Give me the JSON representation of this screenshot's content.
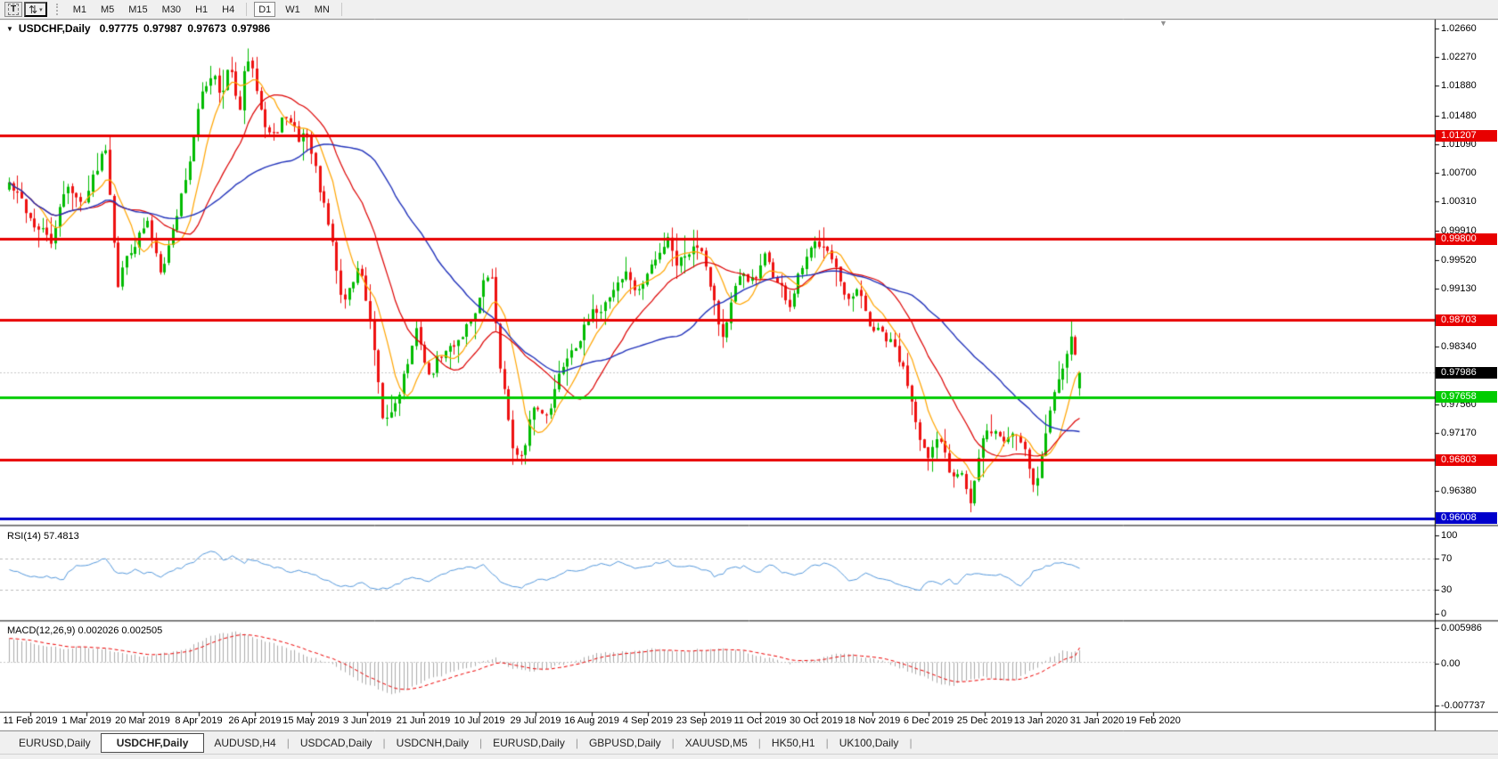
{
  "toolbar": {
    "text_tool_label": "T",
    "timeframes": [
      "M1",
      "M5",
      "M15",
      "M30",
      "H1",
      "H4",
      "D1",
      "W1",
      "MN"
    ],
    "active_timeframe": "D1"
  },
  "icons": {
    "arrows": "⇅",
    "dropdown": "▾",
    "collapse": "▼",
    "shift_marker": "▼"
  },
  "chart": {
    "title": "USDCHF,Daily",
    "ohlc": {
      "open": "0.97775",
      "high": "0.97987",
      "low": "0.97673",
      "close": "0.97986"
    }
  },
  "price_axis": {
    "ticks": [
      "1.02660",
      "1.02270",
      "1.01880",
      "1.01480",
      "1.01090",
      "1.00700",
      "1.00310",
      "0.99910",
      "0.99520",
      "0.99130",
      "0.98340",
      "0.97560",
      "0.97170",
      "0.96380"
    ]
  },
  "rsi": {
    "label": "RSI(14) 57.4813",
    "axis_ticks": [
      "100",
      "70",
      "30",
      "0"
    ]
  },
  "macd": {
    "label": "MACD(12,26,9) 0.002026 0.002505",
    "axis_ticks": [
      "0.005986",
      "0.00",
      "-0.007737"
    ]
  },
  "date_axis": {
    "labels": [
      "11 Feb 2019",
      "1 Mar 2019",
      "20 Mar 2019",
      "8 Apr 2019",
      "26 Apr 2019",
      "15 May 2019",
      "3 Jun 2019",
      "21 Jun 2019",
      "10 Jul 2019",
      "29 Jul 2019",
      "16 Aug 2019",
      "4 Sep 2019",
      "23 Sep 2019",
      "11 Oct 2019",
      "30 Oct 2019",
      "18 Nov 2019",
      "6 Dec 2019",
      "25 Dec 2019",
      "13 Jan 2020",
      "31 Jan 2020",
      "19 Feb 2020"
    ]
  },
  "tabs": {
    "items": [
      "EURUSD,Daily",
      "USDCHF,Daily",
      "AUDUSD,H4",
      "USDCAD,Daily",
      "USDCNH,Daily",
      "EURUSD,Daily",
      "GBPUSD,Daily",
      "XAUUSD,M5",
      "HK50,H1",
      "UK100,Daily"
    ],
    "active_index": 1
  },
  "chart_data": {
    "type": "candlestick",
    "symbol": "USDCHF",
    "timeframe": "Daily",
    "bars": 256,
    "last_bar": {
      "open": 0.97775,
      "high": 0.97987,
      "low": 0.97673,
      "close": 0.97986
    },
    "current_price": 0.97986,
    "colors": {
      "up": "#00BB00",
      "down": "#EE1111"
    },
    "y_axis": {
      "visible_range": [
        0.9594,
        1.0276
      ],
      "grid": false
    },
    "horizontal_lines": [
      {
        "price": 1.01207,
        "color": "#E80000"
      },
      {
        "price": 0.998,
        "color": "#E80000"
      },
      {
        "price": 0.98703,
        "color": "#E80000"
      },
      {
        "price": 0.97658,
        "color": "#00CC00"
      },
      {
        "price": 0.96803,
        "color": "#E80000"
      },
      {
        "price": 0.96008,
        "color": "#0000CC"
      }
    ],
    "moving_averages": [
      {
        "name": "fast-ma",
        "period": 8,
        "color": "#FFA500"
      },
      {
        "name": "medium-ma",
        "period": 20,
        "color": "#DD0000"
      },
      {
        "name": "slow-ma",
        "period": 44,
        "color": "#2233BB"
      }
    ],
    "price_path_anchors": [
      [
        0.0,
        1.0055
      ],
      [
        0.017,
        1.0015
      ],
      [
        0.029,
        0.999
      ],
      [
        0.041,
        0.9975
      ],
      [
        0.054,
        1.006
      ],
      [
        0.066,
        1.0025
      ],
      [
        0.079,
        1.0065
      ],
      [
        0.09,
        1.0115
      ],
      [
        0.102,
        0.993
      ],
      [
        0.116,
        0.998
      ],
      [
        0.129,
        1.0
      ],
      [
        0.141,
        0.9945
      ],
      [
        0.154,
        1.0
      ],
      [
        0.166,
        1.0075
      ],
      [
        0.181,
        1.018
      ],
      [
        0.191,
        1.0215
      ],
      [
        0.199,
        1.018
      ],
      [
        0.206,
        1.022
      ],
      [
        0.214,
        1.014
      ],
      [
        0.222,
        1.0225
      ],
      [
        0.232,
        1.018
      ],
      [
        0.241,
        1.014
      ],
      [
        0.251,
        1.0125
      ],
      [
        0.259,
        1.015
      ],
      [
        0.27,
        1.011
      ],
      [
        0.278,
        1.0125
      ],
      [
        0.29,
        1.005
      ],
      [
        0.3,
        0.998
      ],
      [
        0.311,
        0.989
      ],
      [
        0.32,
        0.992
      ],
      [
        0.328,
        0.9945
      ],
      [
        0.339,
        0.985
      ],
      [
        0.349,
        0.972
      ],
      [
        0.357,
        0.974
      ],
      [
        0.369,
        0.98
      ],
      [
        0.382,
        0.9855
      ],
      [
        0.392,
        0.979
      ],
      [
        0.402,
        0.982
      ],
      [
        0.413,
        0.983
      ],
      [
        0.423,
        0.9855
      ],
      [
        0.433,
        0.988
      ],
      [
        0.444,
        0.992
      ],
      [
        0.45,
        0.9935
      ],
      [
        0.458,
        0.982
      ],
      [
        0.466,
        0.974
      ],
      [
        0.473,
        0.969
      ],
      [
        0.481,
        0.968
      ],
      [
        0.49,
        0.975
      ],
      [
        0.5,
        0.974
      ],
      [
        0.51,
        0.978
      ],
      [
        0.523,
        0.983
      ],
      [
        0.533,
        0.9855
      ],
      [
        0.544,
        0.987
      ],
      [
        0.556,
        0.9895
      ],
      [
        0.568,
        0.9925
      ],
      [
        0.577,
        0.9935
      ],
      [
        0.588,
        0.9905
      ],
      [
        0.598,
        0.994
      ],
      [
        0.607,
        0.9955
      ],
      [
        0.616,
        0.999
      ],
      [
        0.624,
        0.995
      ],
      [
        0.635,
        0.997
      ],
      [
        0.647,
        0.9975
      ],
      [
        0.656,
        0.9925
      ],
      [
        0.666,
        0.985
      ],
      [
        0.676,
        0.99
      ],
      [
        0.687,
        0.993
      ],
      [
        0.697,
        0.992
      ],
      [
        0.707,
        0.995
      ],
      [
        0.718,
        0.992
      ],
      [
        0.729,
        0.989
      ],
      [
        0.739,
        0.993
      ],
      [
        0.751,
        0.996
      ],
      [
        0.763,
        0.9985
      ],
      [
        0.773,
        0.994
      ],
      [
        0.782,
        0.988
      ],
      [
        0.793,
        0.99
      ],
      [
        0.803,
        0.986
      ],
      [
        0.813,
        0.985
      ],
      [
        0.826,
        0.983
      ],
      [
        0.838,
        0.979
      ],
      [
        0.848,
        0.974
      ],
      [
        0.859,
        0.968
      ],
      [
        0.87,
        0.97
      ],
      [
        0.88,
        0.966
      ],
      [
        0.89,
        0.968
      ],
      [
        0.898,
        0.963
      ],
      [
        0.909,
        0.97
      ],
      [
        0.919,
        0.972
      ],
      [
        0.929,
        0.9705
      ],
      [
        0.939,
        0.972
      ],
      [
        0.95,
        0.97
      ],
      [
        0.958,
        0.9645
      ],
      [
        0.969,
        0.972
      ],
      [
        0.979,
        0.979
      ],
      [
        0.988,
        0.984
      ],
      [
        0.994,
        0.985
      ],
      [
        1.0,
        0.97986
      ]
    ],
    "indicators": [
      {
        "name": "RSI",
        "params": "14",
        "value": 57.4813,
        "levels": [
          70,
          30
        ],
        "scale": [
          0,
          100
        ],
        "color": "#5599DD",
        "path_anchors": [
          [
            0,
            55
          ],
          [
            0.02,
            50
          ],
          [
            0.05,
            45
          ],
          [
            0.06,
            60
          ],
          [
            0.09,
            68
          ],
          [
            0.1,
            50
          ],
          [
            0.12,
            55
          ],
          [
            0.14,
            48
          ],
          [
            0.16,
            58
          ],
          [
            0.18,
            72
          ],
          [
            0.19,
            78
          ],
          [
            0.2,
            70
          ],
          [
            0.21,
            74
          ],
          [
            0.22,
            62
          ],
          [
            0.225,
            70
          ],
          [
            0.24,
            60
          ],
          [
            0.26,
            55
          ],
          [
            0.28,
            52
          ],
          [
            0.3,
            42
          ],
          [
            0.315,
            35
          ],
          [
            0.33,
            40
          ],
          [
            0.345,
            30
          ],
          [
            0.36,
            35
          ],
          [
            0.375,
            48
          ],
          [
            0.39,
            42
          ],
          [
            0.4,
            48
          ],
          [
            0.42,
            55
          ],
          [
            0.445,
            60
          ],
          [
            0.46,
            38
          ],
          [
            0.48,
            33
          ],
          [
            0.49,
            42
          ],
          [
            0.505,
            44
          ],
          [
            0.52,
            52
          ],
          [
            0.54,
            58
          ],
          [
            0.555,
            62
          ],
          [
            0.57,
            65
          ],
          [
            0.585,
            55
          ],
          [
            0.6,
            62
          ],
          [
            0.615,
            68
          ],
          [
            0.625,
            58
          ],
          [
            0.64,
            62
          ],
          [
            0.65,
            55
          ],
          [
            0.66,
            45
          ],
          [
            0.67,
            55
          ],
          [
            0.685,
            60
          ],
          [
            0.7,
            55
          ],
          [
            0.715,
            62
          ],
          [
            0.725,
            52
          ],
          [
            0.735,
            45
          ],
          [
            0.75,
            58
          ],
          [
            0.765,
            65
          ],
          [
            0.775,
            55
          ],
          [
            0.785,
            42
          ],
          [
            0.8,
            50
          ],
          [
            0.81,
            44
          ],
          [
            0.82,
            42
          ],
          [
            0.835,
            38
          ],
          [
            0.85,
            32
          ],
          [
            0.86,
            42
          ],
          [
            0.87,
            36
          ],
          [
            0.88,
            42
          ],
          [
            0.885,
            34
          ],
          [
            0.895,
            48
          ],
          [
            0.905,
            52
          ],
          [
            0.915,
            48
          ],
          [
            0.925,
            50
          ],
          [
            0.935,
            45
          ],
          [
            0.945,
            38
          ],
          [
            0.955,
            52
          ],
          [
            0.97,
            62
          ],
          [
            0.985,
            68
          ],
          [
            0.995,
            60
          ],
          [
            1.0,
            57.48
          ]
        ]
      },
      {
        "name": "MACD",
        "params": "12,26,9",
        "value": 0.002026,
        "signal": 0.002505,
        "scale": [
          -0.007737,
          0.005986
        ],
        "histogram_color": "#ABABAB",
        "signal_color": "#EE0000",
        "path_anchors": [
          [
            0,
            0.0042
          ],
          [
            0.03,
            0.0032
          ],
          [
            0.05,
            0.0024
          ],
          [
            0.07,
            0.0028
          ],
          [
            0.09,
            0.0022
          ],
          [
            0.11,
            0.0012
          ],
          [
            0.13,
            0.0009
          ],
          [
            0.15,
            0.0013
          ],
          [
            0.17,
            0.0028
          ],
          [
            0.19,
            0.0048
          ],
          [
            0.21,
            0.0052
          ],
          [
            0.23,
            0.0044
          ],
          [
            0.25,
            0.0032
          ],
          [
            0.27,
            0.0018
          ],
          [
            0.29,
            0.0005
          ],
          [
            0.31,
            -0.0015
          ],
          [
            0.33,
            -0.0035
          ],
          [
            0.35,
            -0.0052
          ],
          [
            0.36,
            -0.0055
          ],
          [
            0.38,
            -0.004
          ],
          [
            0.4,
            -0.0028
          ],
          [
            0.42,
            -0.0015
          ],
          [
            0.44,
            -0.0004
          ],
          [
            0.455,
            0.0006
          ],
          [
            0.47,
            -0.0008
          ],
          [
            0.485,
            -0.0018
          ],
          [
            0.5,
            -0.0012
          ],
          [
            0.52,
            -0.0002
          ],
          [
            0.54,
            0.001
          ],
          [
            0.56,
            0.0016
          ],
          [
            0.58,
            0.0019
          ],
          [
            0.6,
            0.0021
          ],
          [
            0.62,
            0.0018
          ],
          [
            0.64,
            0.0021
          ],
          [
            0.66,
            0.0023
          ],
          [
            0.68,
            0.0019
          ],
          [
            0.7,
            0.0012
          ],
          [
            0.715,
            0.0005
          ],
          [
            0.73,
            -0.0005
          ],
          [
            0.745,
            0.0002
          ],
          [
            0.76,
            0.0008
          ],
          [
            0.775,
            0.0012
          ],
          [
            0.79,
            0.001
          ],
          [
            0.805,
            0.0006
          ],
          [
            0.82,
            -0.0002
          ],
          [
            0.835,
            -0.0012
          ],
          [
            0.85,
            -0.0025
          ],
          [
            0.865,
            -0.0035
          ],
          [
            0.88,
            -0.004
          ],
          [
            0.895,
            -0.0032
          ],
          [
            0.91,
            -0.0024
          ],
          [
            0.925,
            -0.0028
          ],
          [
            0.94,
            -0.003
          ],
          [
            0.955,
            -0.0015
          ],
          [
            0.97,
            0.0005
          ],
          [
            0.985,
            0.0018
          ],
          [
            1.0,
            0.002026
          ]
        ]
      }
    ]
  }
}
